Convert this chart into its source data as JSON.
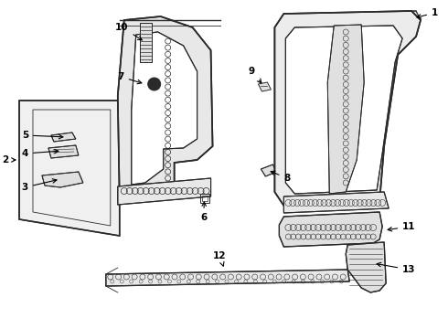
{
  "background_color": "#f5f5f5",
  "line_color": "#2a2a2a",
  "label_color": "#000000",
  "fig_width": 4.9,
  "fig_height": 3.6,
  "dpi": 100,
  "gray": "#888888",
  "light_gray": "#cccccc"
}
